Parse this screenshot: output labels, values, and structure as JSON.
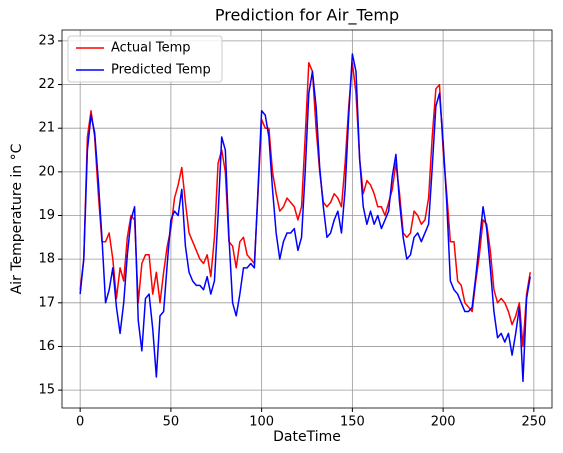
{
  "chart_data": {
    "type": "line",
    "title": "Prediction for Air_Temp",
    "x_label": "DateTime",
    "y_label": "Air Temperature in °C",
    "x": [
      0,
      2,
      4,
      6,
      8,
      10,
      12,
      14,
      16,
      18,
      20,
      22,
      24,
      26,
      28,
      30,
      32,
      34,
      36,
      38,
      40,
      42,
      44,
      46,
      48,
      50,
      52,
      54,
      56,
      58,
      60,
      62,
      64,
      66,
      68,
      70,
      72,
      74,
      76,
      78,
      80,
      82,
      84,
      86,
      88,
      90,
      92,
      94,
      96,
      98,
      100,
      102,
      104,
      106,
      108,
      110,
      112,
      114,
      116,
      118,
      120,
      122,
      124,
      126,
      128,
      130,
      132,
      134,
      136,
      138,
      140,
      142,
      144,
      146,
      148,
      150,
      152,
      154,
      156,
      158,
      160,
      162,
      164,
      166,
      168,
      170,
      172,
      174,
      176,
      178,
      180,
      182,
      184,
      186,
      188,
      190,
      192,
      194,
      196,
      198,
      200,
      202,
      204,
      206,
      208,
      210,
      212,
      214,
      216,
      218,
      220,
      222,
      224,
      226,
      228,
      230,
      232,
      234,
      236,
      238,
      240,
      242,
      244,
      246,
      248
    ],
    "series": [
      {
        "name": "Actual Temp",
        "color": "#ff0000",
        "values": [
          17.3,
          18.0,
          20.8,
          21.4,
          20.8,
          19.5,
          18.4,
          18.4,
          18.6,
          18.0,
          17.1,
          17.8,
          17.5,
          18.5,
          19.0,
          18.9,
          17.0,
          17.9,
          18.1,
          18.1,
          17.2,
          17.7,
          17.0,
          17.7,
          18.3,
          18.7,
          19.4,
          19.7,
          20.1,
          19.3,
          18.6,
          18.4,
          18.2,
          18.0,
          17.9,
          18.1,
          17.6,
          18.5,
          20.2,
          20.5,
          20.0,
          18.4,
          18.3,
          17.8,
          18.4,
          18.5,
          18.1,
          18.0,
          17.9,
          19.5,
          21.2,
          21.0,
          21.0,
          20.0,
          19.5,
          19.1,
          19.2,
          19.4,
          19.3,
          19.2,
          18.9,
          19.2,
          20.8,
          22.5,
          22.3,
          21.0,
          20.0,
          19.3,
          19.2,
          19.3,
          19.5,
          19.4,
          19.2,
          20.2,
          21.5,
          22.5,
          21.8,
          20.3,
          19.5,
          19.8,
          19.7,
          19.5,
          19.2,
          19.2,
          19.0,
          19.3,
          19.6,
          20.2,
          19.5,
          18.6,
          18.5,
          18.6,
          19.1,
          19.0,
          18.8,
          18.9,
          19.4,
          20.8,
          21.9,
          22.0,
          20.5,
          19.5,
          18.4,
          18.4,
          17.5,
          17.4,
          17.0,
          16.9,
          16.8,
          17.5,
          18.1,
          18.9,
          18.8,
          18.2,
          17.3,
          17.0,
          17.1,
          17.0,
          16.8,
          16.5,
          16.7,
          17.0,
          16.0,
          17.2,
          17.7
        ]
      },
      {
        "name": "Predicted Temp",
        "color": "#0000ff",
        "values": [
          17.2,
          18.0,
          20.5,
          21.3,
          20.9,
          19.8,
          18.5,
          17.0,
          17.3,
          17.8,
          16.9,
          16.3,
          17.0,
          18.1,
          18.9,
          19.2,
          16.6,
          15.9,
          17.1,
          17.2,
          16.4,
          15.3,
          16.7,
          16.8,
          17.9,
          18.9,
          19.1,
          19.0,
          19.6,
          18.3,
          17.7,
          17.5,
          17.4,
          17.4,
          17.3,
          17.6,
          17.2,
          17.5,
          19.0,
          20.8,
          20.5,
          18.5,
          17.0,
          16.7,
          17.2,
          17.8,
          17.8,
          17.9,
          17.8,
          19.6,
          21.4,
          21.3,
          20.8,
          19.6,
          18.6,
          18.0,
          18.4,
          18.6,
          18.6,
          18.7,
          18.2,
          18.5,
          20.0,
          21.8,
          22.3,
          21.5,
          20.1,
          19.2,
          18.5,
          18.6,
          18.9,
          19.1,
          18.6,
          19.6,
          21.3,
          22.7,
          22.3,
          20.3,
          19.2,
          18.8,
          19.1,
          18.8,
          19.0,
          18.7,
          18.9,
          19.1,
          19.9,
          20.4,
          19.3,
          18.5,
          18.0,
          18.1,
          18.5,
          18.6,
          18.4,
          18.6,
          18.8,
          20.1,
          21.5,
          21.8,
          20.7,
          19.3,
          17.5,
          17.3,
          17.2,
          17.0,
          16.8,
          16.8,
          16.9,
          17.6,
          18.4,
          19.2,
          18.7,
          17.8,
          16.8,
          16.2,
          16.3,
          16.1,
          16.3,
          15.8,
          16.3,
          16.9,
          15.2,
          17.1,
          17.6
        ]
      }
    ],
    "xlim": [
      -10,
      260
    ],
    "ylim": [
      14.59,
      23.25
    ],
    "xticks": [
      0,
      50,
      100,
      150,
      200,
      250
    ],
    "yticks": [
      15,
      16,
      17,
      18,
      19,
      20,
      21,
      22,
      23
    ],
    "grid": true,
    "legend": "upper left"
  }
}
